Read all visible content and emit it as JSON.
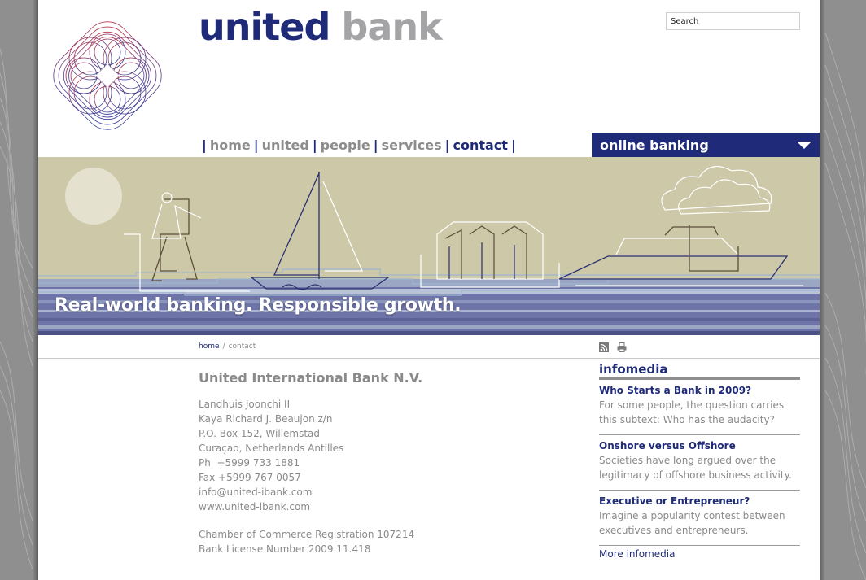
{
  "brand": {
    "name_part1": "united",
    "name_part2": "bank",
    "logo_icon": "guilloche-diamond-logo",
    "primary_color": "#1f2a78",
    "secondary_color": "#a4a4a6"
  },
  "search": {
    "placeholder": "Search",
    "value": ""
  },
  "nav": {
    "items": [
      {
        "label": "home",
        "active": false
      },
      {
        "label": "united",
        "active": false
      },
      {
        "label": "people",
        "active": false
      },
      {
        "label": "services",
        "active": false
      },
      {
        "label": "contact",
        "active": true
      }
    ],
    "separator": "|"
  },
  "online_banking": {
    "label": "online banking",
    "icon": "triangle-down-icon"
  },
  "banner": {
    "tagline": "Real-world banking. Responsible growth."
  },
  "breadcrumb": {
    "home": "home",
    "separator": "/",
    "current": "contact"
  },
  "utility_icons": [
    "rss-icon",
    "print-icon"
  ],
  "contact": {
    "company": "United International Bank N.V.",
    "address_lines": [
      "Landhuis Joonchi II",
      "Kaya Richard J. Beaujon z/n",
      "P.O. Box 152, Willemstad",
      "Curaçao, Netherlands Antilles",
      "Ph  +5999 733 1881",
      "Fax +5999 767 0057",
      "info@united-ibank.com",
      "www.united-ibank.com"
    ],
    "registration_lines": [
      "Chamber of Commerce Registration 107214",
      "Bank License Number 2009.11.418"
    ]
  },
  "infomedia": {
    "title": "infomedia",
    "articles": [
      {
        "title": "Who Starts a Bank in 2009?",
        "text": "For some people, the question carries this subtext: Who has the audacity?"
      },
      {
        "title": "Onshore versus Offshore",
        "text": "Societies have long argued over the legitimacy of offshore business activity."
      },
      {
        "title": "Executive or Entrepreneur?",
        "text": "Imagine a popularity contest between executives and entrepreneurs."
      }
    ],
    "more_label": "More infomedia"
  }
}
